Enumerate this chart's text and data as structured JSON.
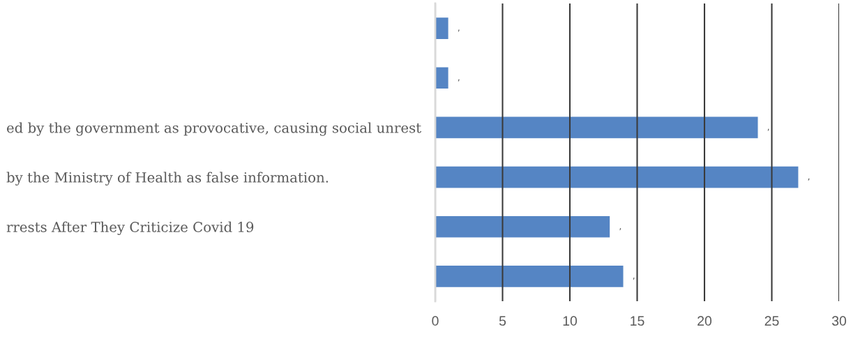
{
  "chart_data": {
    "type": "bar",
    "orientation": "horizontal",
    "categories": [
      null,
      null,
      "ed by the government as provocative, causing social unrest",
      "by the Ministry of Health as false information.",
      "rrests After They Criticize Covid 19",
      null
    ],
    "values": [
      1,
      1,
      24,
      27,
      13,
      14
    ],
    "color": "#5585c4",
    "value_labels": [
      ",",
      ",",
      ",",
      ",",
      ",",
      ","
    ],
    "xlim": [
      0,
      30
    ],
    "xticks": [
      0,
      5,
      10,
      15,
      20,
      25,
      30
    ],
    "grid": "x"
  }
}
